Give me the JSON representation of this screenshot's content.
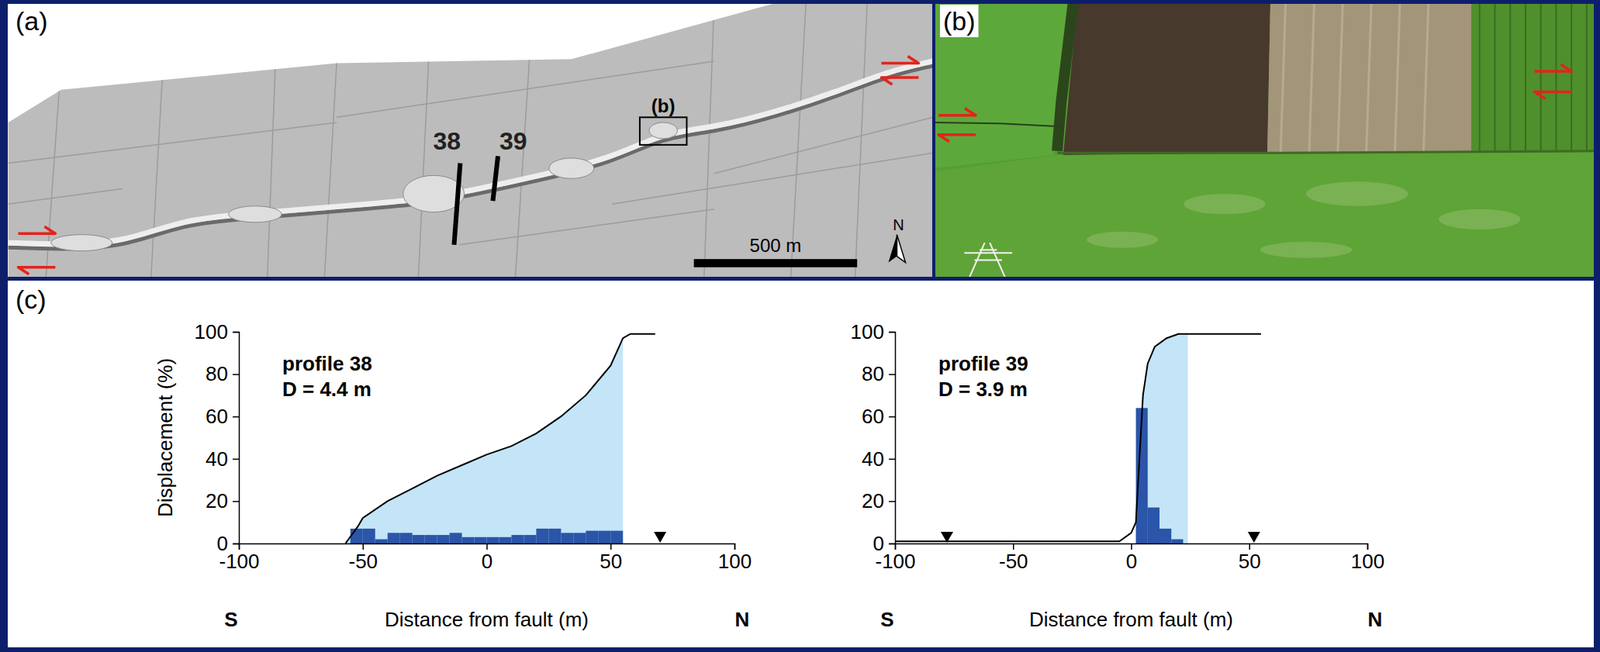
{
  "figure": {
    "panel_labels": [
      "(a)",
      "(b)",
      "(c)"
    ],
    "map": {
      "profile_labels": [
        "38",
        "39"
      ],
      "inset_label": "(b)",
      "scale_bar": "500 m",
      "north": "N"
    }
  },
  "chart_data": [
    {
      "type": "line",
      "title": "profile 38",
      "subtitle": "D = 4.4 m",
      "x_label": "Distance from fault (m)",
      "y_label": "Displacement (%)",
      "annotations": [
        "S",
        "N"
      ],
      "xlim": [
        -100,
        100
      ],
      "xticks": [
        -100,
        -50,
        0,
        50,
        100
      ],
      "ylim": [
        0,
        100
      ],
      "yticks": [
        0,
        20,
        40,
        60,
        80,
        100
      ],
      "series": [
        {
          "type": "area",
          "color": "#c3e5f7",
          "x": [
            -57,
            -52,
            -50,
            -40,
            -30,
            -20,
            -10,
            0,
            10,
            20,
            30,
            40,
            50,
            55
          ],
          "values": [
            0,
            8,
            12,
            20,
            26,
            32,
            37,
            42,
            46,
            52,
            60,
            70,
            84,
            97
          ]
        },
        {
          "type": "histogram",
          "color": "#2a55a8",
          "bins": [
            -55,
            -50,
            -45,
            -40,
            -35,
            -30,
            -25,
            -20,
            -15,
            -10,
            -5,
            0,
            5,
            10,
            15,
            20,
            25,
            30,
            35,
            40,
            45,
            50,
            55
          ],
          "values": [
            7,
            7,
            2,
            5,
            5,
            4,
            4,
            4,
            5,
            3,
            3,
            3,
            3,
            4,
            4,
            7,
            7,
            5,
            5,
            6,
            6,
            6
          ]
        },
        {
          "type": "line",
          "color": "#000000",
          "x": [
            -57,
            -52,
            -50,
            -40,
            -30,
            -20,
            -10,
            0,
            10,
            20,
            30,
            40,
            50,
            55,
            58,
            68
          ],
          "values": [
            0,
            8,
            12,
            20,
            26,
            32,
            37,
            42,
            46,
            52,
            60,
            70,
            84,
            97,
            99,
            99
          ]
        },
        {
          "type": "scatter",
          "color": "#000000",
          "marker": "triangle-down",
          "x": [
            70
          ],
          "values": [
            0
          ]
        }
      ]
    },
    {
      "type": "line",
      "title": "profile 39",
      "subtitle": "D = 3.9 m",
      "x_label": "Distance from fault (m)",
      "annotations": [
        "S",
        "N"
      ],
      "xlim": [
        -100,
        100
      ],
      "xticks": [
        -100,
        -50,
        0,
        50,
        100
      ],
      "ylim": [
        0,
        100
      ],
      "yticks": [
        0,
        20,
        40,
        60,
        80,
        100
      ],
      "series": [
        {
          "type": "area",
          "color": "#c3e5f7",
          "x": [
            2,
            3,
            4,
            5,
            7,
            10,
            15,
            20,
            24
          ],
          "values": [
            10,
            30,
            50,
            70,
            85,
            93,
            97,
            99,
            99
          ]
        },
        {
          "type": "histogram",
          "color": "#2a55a8",
          "bins": [
            2,
            7,
            12,
            17,
            22
          ],
          "values": [
            64,
            17,
            7,
            2
          ]
        },
        {
          "type": "line",
          "color": "#000000",
          "x": [
            -100,
            -5,
            0,
            2,
            3,
            4,
            5,
            7,
            10,
            15,
            20,
            24,
            55
          ],
          "values": [
            1,
            1,
            5,
            10,
            30,
            50,
            70,
            85,
            93,
            97,
            99,
            99,
            99
          ]
        },
        {
          "type": "scatter",
          "color": "#000000",
          "marker": "triangle-down",
          "x": [
            -78,
            52
          ],
          "values": [
            0,
            0
          ]
        }
      ]
    }
  ]
}
